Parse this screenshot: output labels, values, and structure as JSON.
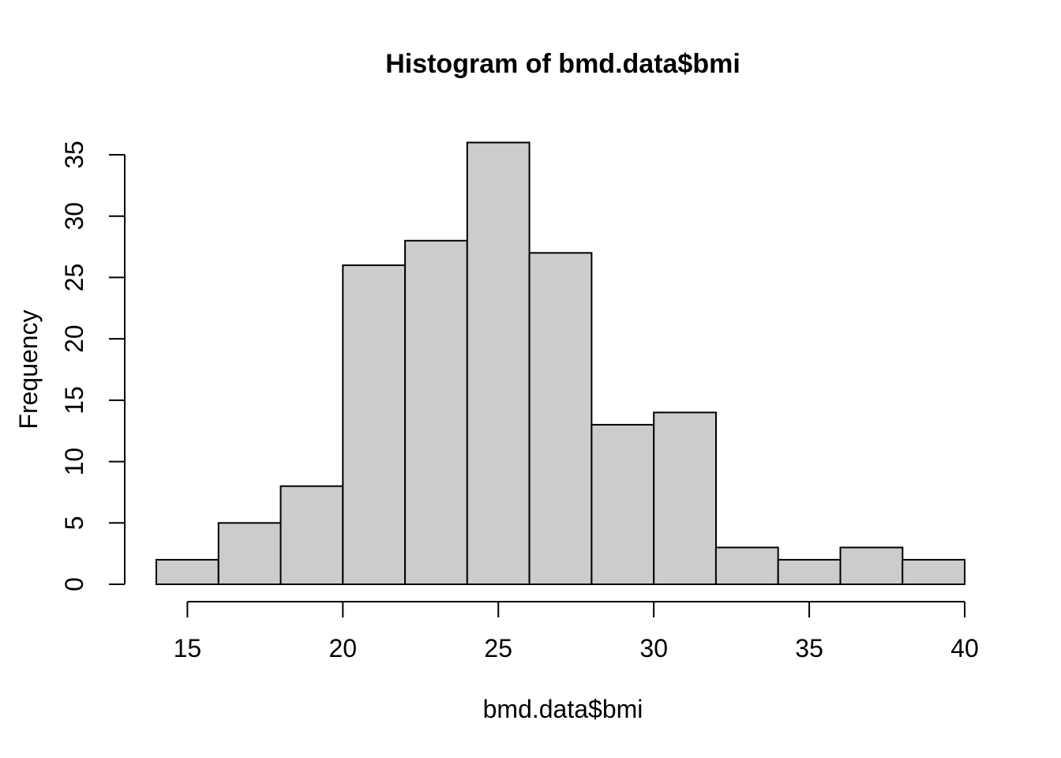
{
  "figure": {
    "title": "Histogram of bmd.data$bmi"
  },
  "chart_data": {
    "type": "bar",
    "subtype": "histogram",
    "title": "Histogram of bmd.data$bmi",
    "xlabel": "bmd.data$bmi",
    "ylabel": "Frequency",
    "bin_edges": [
      14,
      16,
      18,
      20,
      22,
      24,
      26,
      28,
      30,
      32,
      34,
      36,
      38,
      40
    ],
    "counts": [
      2,
      5,
      8,
      26,
      28,
      36,
      27,
      13,
      14,
      3,
      2,
      3,
      2
    ],
    "x_tick_values": [
      15,
      20,
      25,
      30,
      35,
      40
    ],
    "x_tick_labels": [
      "15",
      "20",
      "25",
      "30",
      "35",
      "40"
    ],
    "y_tick_values": [
      0,
      5,
      10,
      15,
      20,
      25,
      30,
      35
    ],
    "y_tick_labels": [
      "0",
      "5",
      "10",
      "15",
      "20",
      "25",
      "30",
      "35"
    ],
    "xlim": [
      14,
      40
    ],
    "ylim": [
      0,
      35
    ],
    "grid": false,
    "legend_position": "none",
    "bar_fill": "#CCCCCC",
    "bar_stroke": "#000000",
    "axis_color": "#000000",
    "text_color": "#000000",
    "background": "#FFFFFF"
  }
}
